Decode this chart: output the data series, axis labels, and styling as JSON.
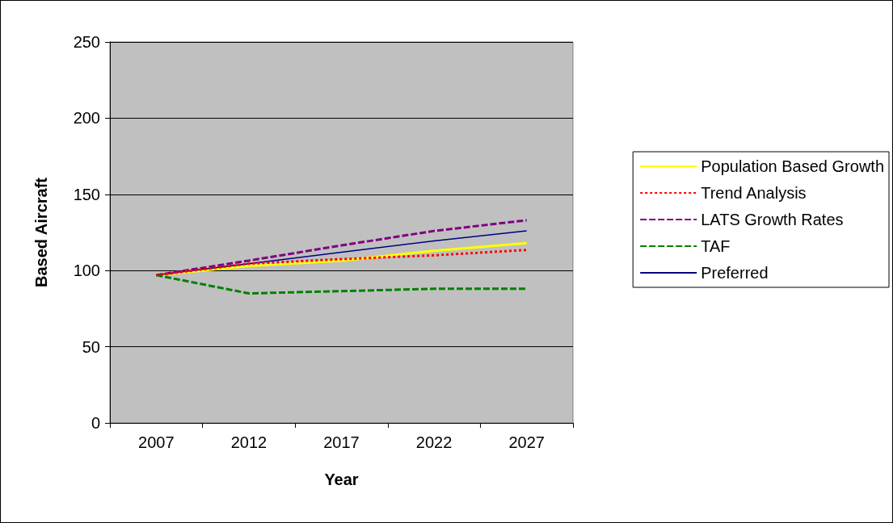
{
  "chart_data": {
    "type": "line",
    "xlabel": "Year",
    "ylabel": "Based Aircraft",
    "categories": [
      "2007",
      "2012",
      "2017",
      "2022",
      "2027"
    ],
    "ylim": [
      0,
      250
    ],
    "yticks": [
      0,
      50,
      100,
      150,
      200,
      250
    ],
    "grid": "y",
    "legend": "right",
    "marker": "none",
    "series": [
      {
        "name": "Population Based Growth",
        "color": "#ffff00",
        "line_style": "solid",
        "values": [
          97,
          103,
          106.5,
          113,
          118
        ]
      },
      {
        "name": "Trend Analysis",
        "color": "#ff0000",
        "line_style": "dotted",
        "values": [
          97,
          104.5,
          107.5,
          110,
          113.5
        ]
      },
      {
        "name": "LATS Growth Rates",
        "color": "#800080",
        "line_style": "dashed",
        "values": [
          97,
          106.5,
          116.5,
          126,
          133
        ]
      },
      {
        "name": "TAF",
        "color": "#008000",
        "line_style": "dashed",
        "values": [
          97,
          85,
          86.5,
          88,
          88
        ]
      },
      {
        "name": "Preferred",
        "color": "#000080",
        "line_style": "solid",
        "values": [
          97,
          104.5,
          112,
          119.5,
          126
        ]
      }
    ]
  }
}
